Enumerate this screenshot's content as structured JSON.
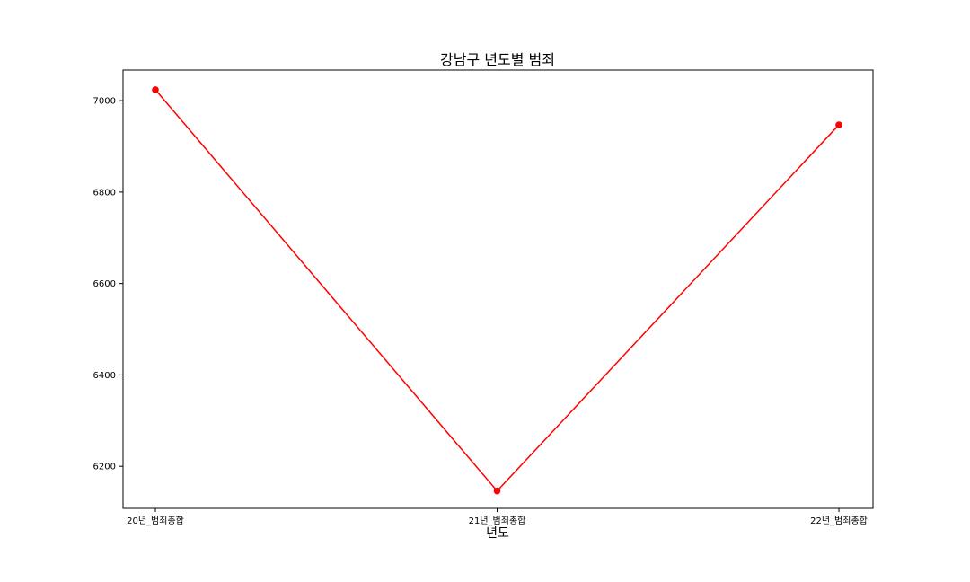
{
  "chart_data": {
    "type": "line",
    "title": "강남구 년도별 범죄",
    "xlabel": "년도",
    "ylabel": "",
    "categories": [
      "20년_범죄총합",
      "21년_범죄총합",
      "22년_범죄총합"
    ],
    "series": [
      {
        "values": [
          7024,
          6146,
          6947
        ],
        "color": "#ff0000",
        "marker": "circle"
      }
    ],
    "ylim": [
      6108,
      7067
    ],
    "yticks": [
      6200,
      6400,
      6600,
      6800,
      7000
    ],
    "grid": false,
    "legend": "none"
  }
}
